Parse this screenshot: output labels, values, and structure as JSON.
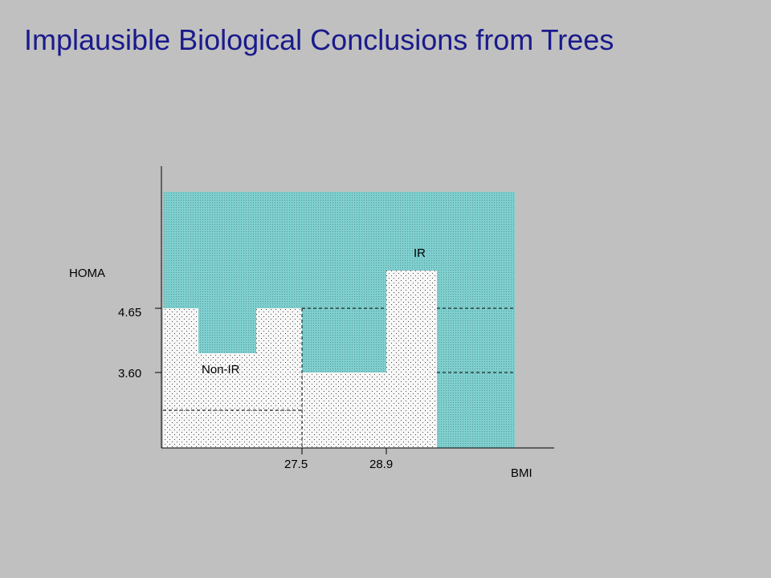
{
  "slide": {
    "title": "Implausible Biological Conclusions from Trees"
  },
  "diagram": {
    "y_axis_label": "HOMA",
    "x_axis_label": "BMI",
    "y_ticks": [
      "4.65",
      "3.60"
    ],
    "x_ticks": [
      "27.5",
      "28.9"
    ],
    "region_labels": {
      "ir": "IR",
      "non_ir": "Non-IR"
    },
    "colors": {
      "background": "#c0c0c0",
      "title": "#1a1a8c",
      "ir_region": "#7fcfcf",
      "non_ir_region": "#f7f7f7",
      "dots": "#444444"
    }
  }
}
